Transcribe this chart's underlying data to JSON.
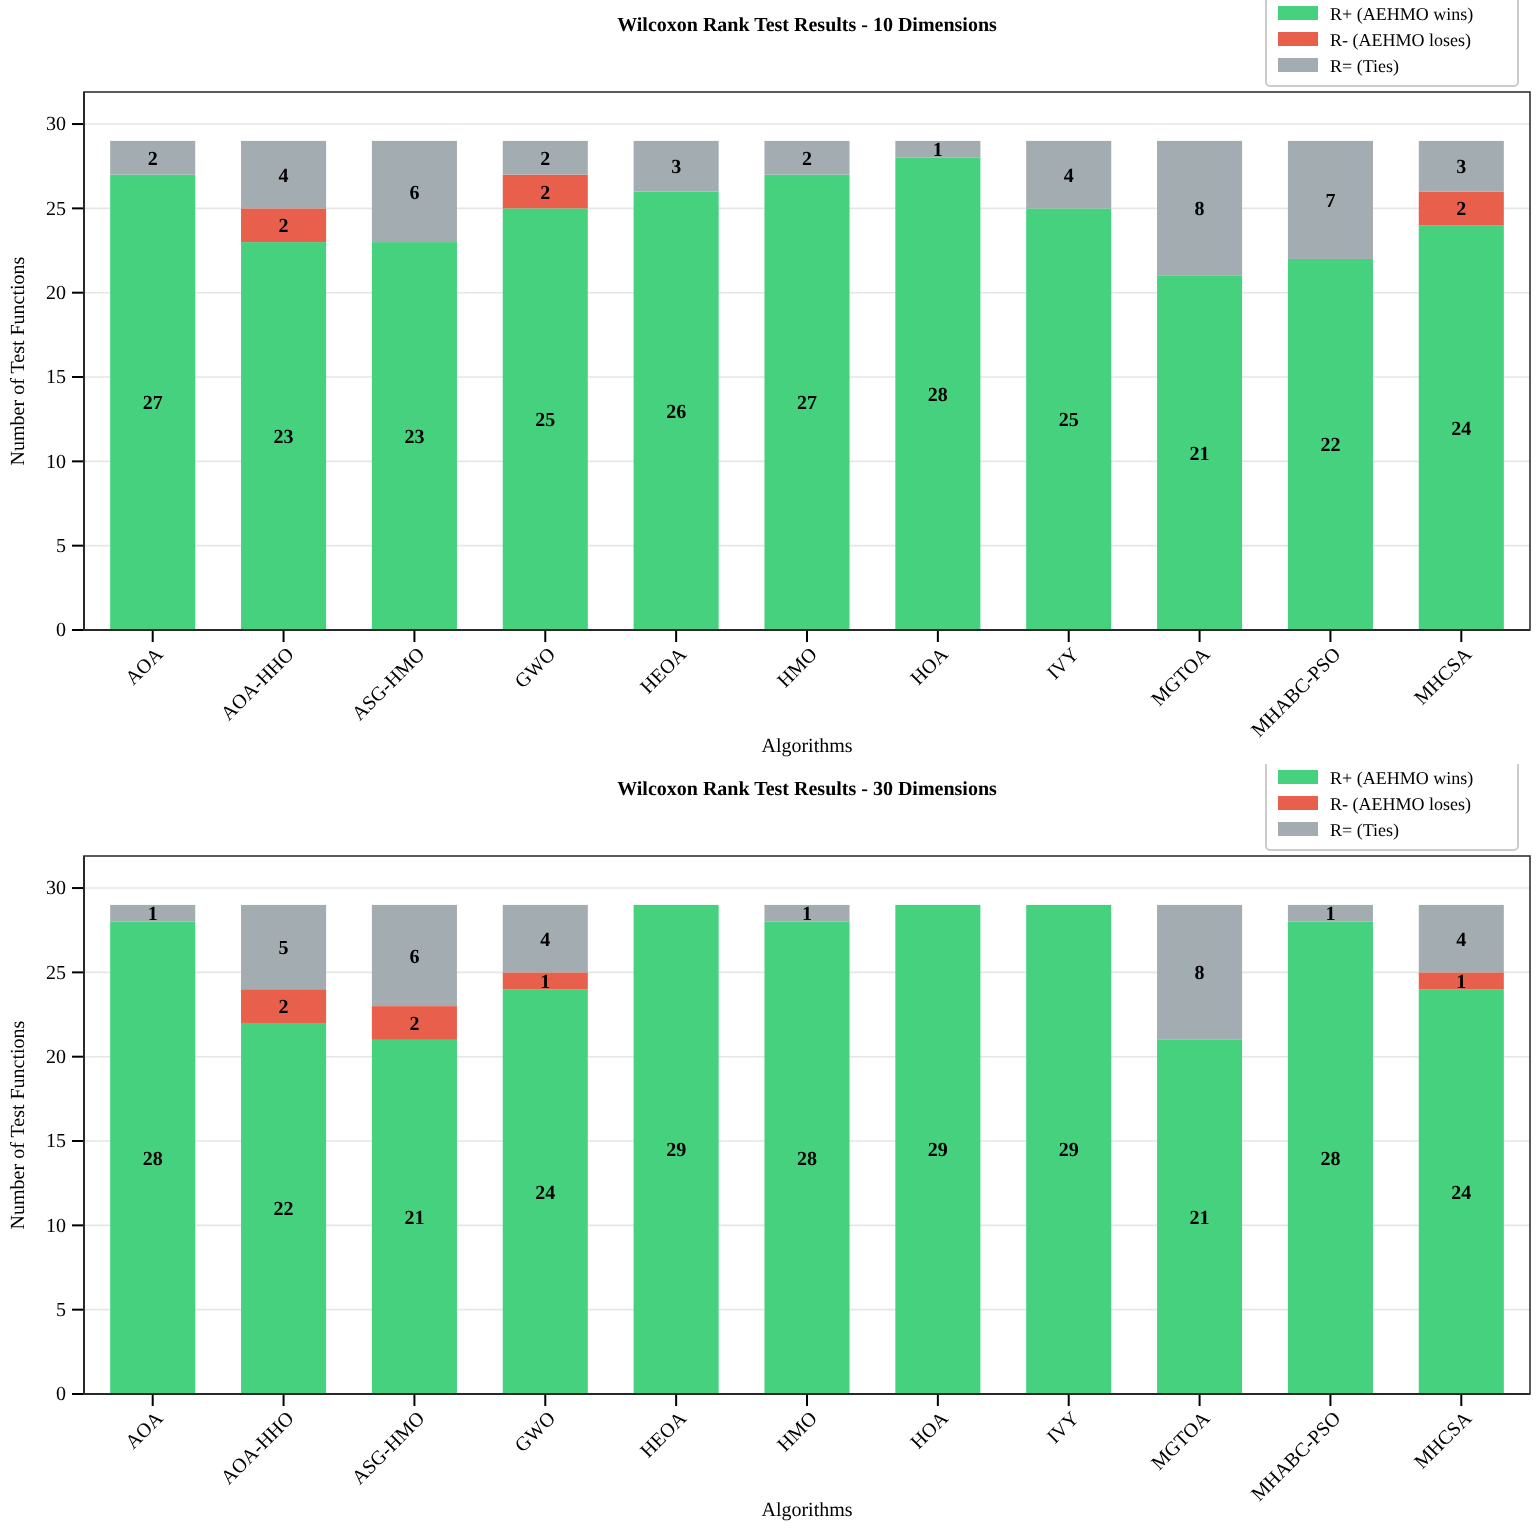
{
  "chart_data": [
    {
      "type": "bar",
      "title": "Wilcoxon Rank Test Results - 10 Dimensions",
      "xlabel": "Algorithms",
      "ylabel": "Number of Test Functions",
      "stacked": true,
      "categories": [
        "AOA",
        "AOA-HHO",
        "ASG-HMO",
        "GWO",
        "HEOA",
        "HMO",
        "HOA",
        "IVY",
        "MGTOA",
        "MHABC-PSO",
        "MHCSA"
      ],
      "series": [
        {
          "name": "R+ (AEHMO wins)",
          "color": "#46d17f",
          "values": [
            27,
            23,
            23,
            25,
            26,
            27,
            28,
            25,
            21,
            22,
            24
          ],
          "value_labels": [
            "27",
            "23",
            "23",
            "25",
            "26",
            "27",
            "28",
            "25",
            "21",
            "22",
            "24"
          ]
        },
        {
          "name": "R- (AEHMO loses)",
          "color": "#e8604c",
          "values": [
            0,
            2,
            0,
            2,
            0,
            0,
            0,
            0,
            0,
            0,
            2
          ],
          "value_labels": [
            null,
            "2",
            null,
            "2",
            null,
            null,
            null,
            null,
            null,
            null,
            "2"
          ]
        },
        {
          "name": "R= (Ties)",
          "color": "#a3acb0",
          "values": [
            2,
            4,
            6,
            2,
            3,
            2,
            1,
            4,
            8,
            7,
            3
          ],
          "value_labels": [
            "2",
            "4",
            "6",
            "2",
            "3",
            "2",
            "1",
            "4",
            "8",
            "7",
            "3"
          ]
        }
      ],
      "ylim": [
        0,
        31.9
      ],
      "yticks": [
        0,
        5,
        10,
        15,
        20,
        25,
        30
      ],
      "grid": "y",
      "legend": "top right"
    },
    {
      "type": "bar",
      "title": "Wilcoxon Rank Test Results - 30 Dimensions",
      "xlabel": "Algorithms",
      "ylabel": "Number of Test Functions",
      "stacked": true,
      "categories": [
        "AOA",
        "AOA-HHO",
        "ASG-HMO",
        "GWO",
        "HEOA",
        "HMO",
        "HOA",
        "IVY",
        "MGTOA",
        "MHABC-PSO",
        "MHCSA"
      ],
      "series": [
        {
          "name": "R+ (AEHMO wins)",
          "color": "#46d17f",
          "values": [
            28,
            22,
            21,
            24,
            29,
            28,
            29,
            29,
            21,
            28,
            24
          ],
          "value_labels": [
            "28",
            "22",
            "21",
            "24",
            "29",
            "28",
            "29",
            "29",
            "21",
            "28",
            "24"
          ]
        },
        {
          "name": "R- (AEHMO loses)",
          "color": "#e8604c",
          "values": [
            0,
            2,
            2,
            1,
            0,
            0,
            0,
            0,
            0,
            0,
            1
          ],
          "value_labels": [
            null,
            "2",
            "2",
            "1",
            null,
            null,
            null,
            null,
            null,
            null,
            "1"
          ]
        },
        {
          "name": "R= (Ties)",
          "color": "#a3acb0",
          "values": [
            1,
            5,
            6,
            4,
            0,
            1,
            0,
            0,
            8,
            1,
            4
          ],
          "value_labels": [
            "1",
            "5",
            "6",
            "4",
            null,
            "1",
            null,
            null,
            "8",
            "1",
            "4"
          ]
        }
      ],
      "ylim": [
        0,
        31.9
      ],
      "yticks": [
        0,
        5,
        10,
        15,
        20,
        25,
        30
      ],
      "grid": "y",
      "legend": "top right"
    }
  ]
}
